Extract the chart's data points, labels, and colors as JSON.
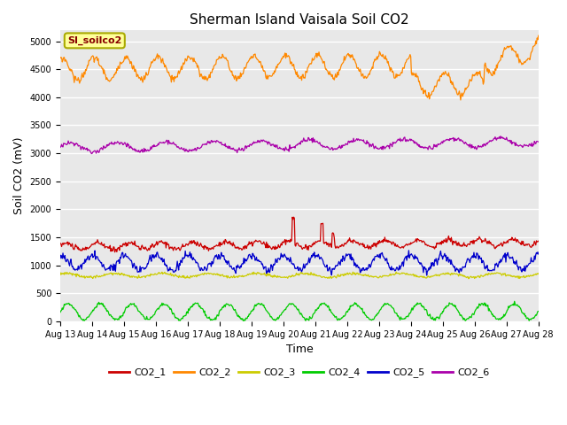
{
  "title": "Sherman Island Vaisala Soil CO2",
  "xlabel": "Time",
  "ylabel": "Soil CO2 (mV)",
  "annotation": "SI_soilco2",
  "x_start": 13,
  "x_end": 28,
  "x_ticks": [
    13,
    14,
    15,
    16,
    17,
    18,
    19,
    20,
    21,
    22,
    23,
    24,
    25,
    26,
    27,
    28
  ],
  "x_tick_labels": [
    "Aug 13",
    "Aug 14",
    "Aug 15",
    "Aug 16",
    "Aug 17",
    "Aug 18",
    "Aug 19",
    "Aug 20",
    "Aug 21",
    "Aug 22",
    "Aug 23",
    "Aug 24",
    "Aug 25",
    "Aug 26",
    "Aug 27",
    "Aug 28"
  ],
  "ylim": [
    0,
    5200
  ],
  "y_ticks": [
    0,
    500,
    1000,
    1500,
    2000,
    2500,
    3000,
    3500,
    4000,
    4500,
    5000
  ],
  "series_colors": {
    "CO2_1": "#cc0000",
    "CO2_2": "#ff8800",
    "CO2_3": "#cccc00",
    "CO2_4": "#00cc00",
    "CO2_5": "#0000cc",
    "CO2_6": "#aa00aa"
  },
  "legend_colors": [
    "#cc0000",
    "#ff8800",
    "#cccc00",
    "#00cc00",
    "#0000cc",
    "#aa00aa"
  ],
  "legend_labels": [
    "CO2_1",
    "CO2_2",
    "CO2_3",
    "CO2_4",
    "CO2_5",
    "CO2_6"
  ],
  "plot_bg_color": "#e8e8e8",
  "fig_bg_color": "#ffffff",
  "grid_color": "#ffffff",
  "annotation_bg": "#ffff99",
  "annotation_border": "#aaaa00",
  "annotation_text_color": "#880000"
}
